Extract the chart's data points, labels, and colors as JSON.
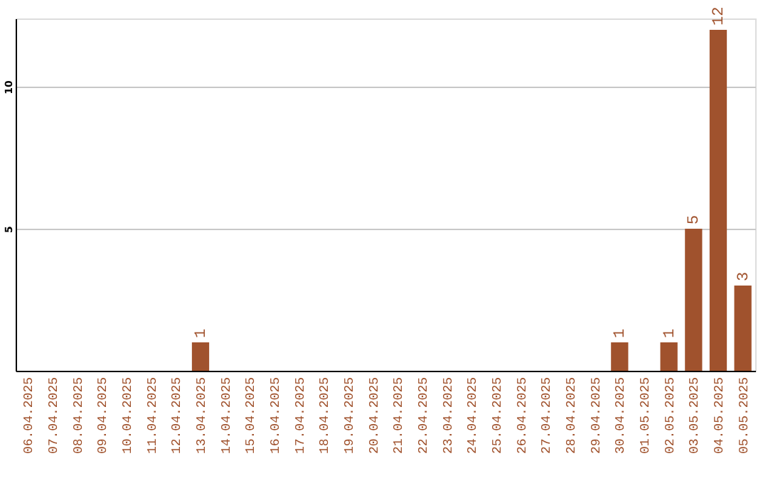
{
  "chart_data": {
    "type": "bar",
    "categories": [
      "06.04.2025",
      "07.04.2025",
      "08.04.2025",
      "09.04.2025",
      "10.04.2025",
      "11.04.2025",
      "12.04.2025",
      "13.04.2025",
      "14.04.2025",
      "15.04.2025",
      "16.04.2025",
      "17.04.2025",
      "18.04.2025",
      "19.04.2025",
      "20.04.2025",
      "21.04.2025",
      "22.04.2025",
      "23.04.2025",
      "24.04.2025",
      "25.04.2025",
      "26.04.2025",
      "27.04.2025",
      "28.04.2025",
      "29.04.2025",
      "30.04.2025",
      "01.05.2025",
      "02.05.2025",
      "03.05.2025",
      "04.05.2025",
      "05.05.2025"
    ],
    "values": [
      0,
      0,
      0,
      0,
      0,
      0,
      0,
      1,
      0,
      0,
      0,
      0,
      0,
      0,
      0,
      0,
      0,
      0,
      0,
      0,
      0,
      0,
      0,
      0,
      1,
      0,
      1,
      5,
      12,
      3
    ],
    "value_labels": [
      null,
      null,
      null,
      null,
      null,
      null,
      null,
      "1",
      null,
      null,
      null,
      null,
      null,
      null,
      null,
      null,
      null,
      null,
      null,
      null,
      null,
      null,
      null,
      null,
      "1",
      null,
      "1",
      "5",
      "12",
      "3"
    ],
    "color": "#a0522d",
    "ylim": [
      0,
      12.4
    ],
    "yticks": [
      5,
      10
    ],
    "grid": "y"
  }
}
